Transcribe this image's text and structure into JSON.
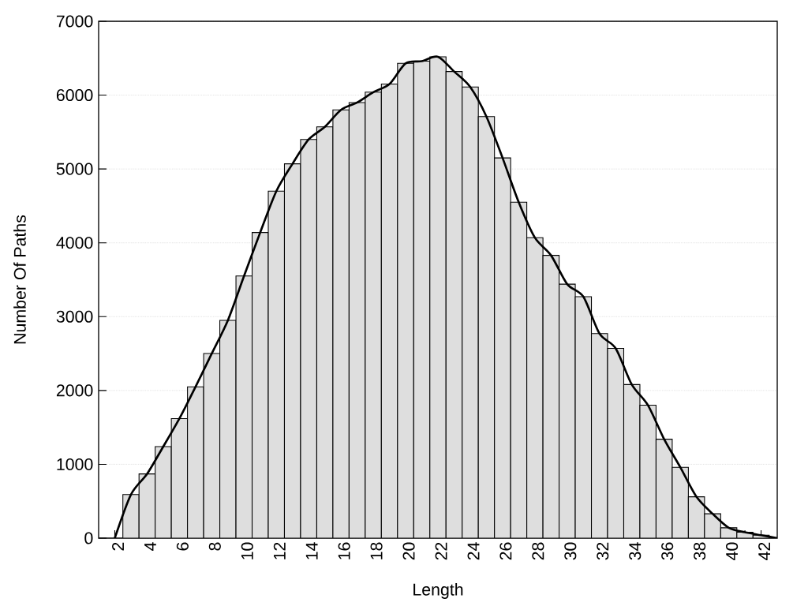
{
  "chart_data": {
    "type": "bar",
    "xlabel": "Length",
    "ylabel": "Number Of Paths",
    "xlim": [
      1,
      43
    ],
    "ylim": [
      0,
      7000
    ],
    "xticks": [
      2,
      4,
      6,
      8,
      10,
      12,
      14,
      16,
      18,
      20,
      22,
      24,
      26,
      28,
      30,
      32,
      34,
      36,
      38,
      40,
      {
        "value": 41,
        "label": null
      },
      42
    ],
    "yticks": [
      0,
      1000,
      2000,
      3000,
      4000,
      5000,
      6000,
      7000
    ],
    "grid": "y",
    "series": [
      {
        "color": "#dedede",
        "x": [
          3,
          4,
          5,
          6,
          7,
          8,
          9,
          10,
          11,
          12,
          13,
          14,
          15,
          16,
          17,
          18,
          19,
          20,
          21,
          22,
          23,
          24,
          25,
          26,
          27,
          28,
          29,
          30,
          31,
          32,
          33,
          34,
          35,
          36,
          37,
          38,
          39,
          40,
          41,
          42
        ],
        "values": [
          590,
          870,
          1240,
          1620,
          2050,
          2500,
          2950,
          3550,
          4140,
          4700,
          5070,
          5400,
          5570,
          5800,
          5900,
          6040,
          6150,
          6430,
          6460,
          6520,
          6320,
          6110,
          5710,
          5150,
          4550,
          4070,
          3830,
          3440,
          3270,
          2770,
          2570,
          2080,
          1800,
          1340,
          960,
          560,
          330,
          140,
          80,
          40
        ]
      },
      {
        "type": "line",
        "color": "#000000",
        "line_style": "solid",
        "x": [
          2,
          3,
          4,
          5,
          6,
          7,
          8,
          9,
          10,
          11,
          12,
          13,
          14,
          15,
          16,
          17,
          18,
          19,
          20,
          21,
          22,
          23,
          24,
          25,
          26,
          27,
          28,
          29,
          30,
          31,
          32,
          33,
          34,
          35,
          36,
          37,
          38,
          39,
          40,
          41,
          42,
          43
        ],
        "values": [
          0,
          590,
          870,
          1240,
          1620,
          2050,
          2500,
          2950,
          3550,
          4140,
          4700,
          5070,
          5400,
          5570,
          5800,
          5900,
          6040,
          6150,
          6430,
          6460,
          6520,
          6320,
          6110,
          5710,
          5150,
          4550,
          4070,
          3830,
          3440,
          3270,
          2770,
          2570,
          2080,
          1800,
          1340,
          960,
          560,
          330,
          140,
          80,
          40,
          0
        ]
      }
    ]
  }
}
